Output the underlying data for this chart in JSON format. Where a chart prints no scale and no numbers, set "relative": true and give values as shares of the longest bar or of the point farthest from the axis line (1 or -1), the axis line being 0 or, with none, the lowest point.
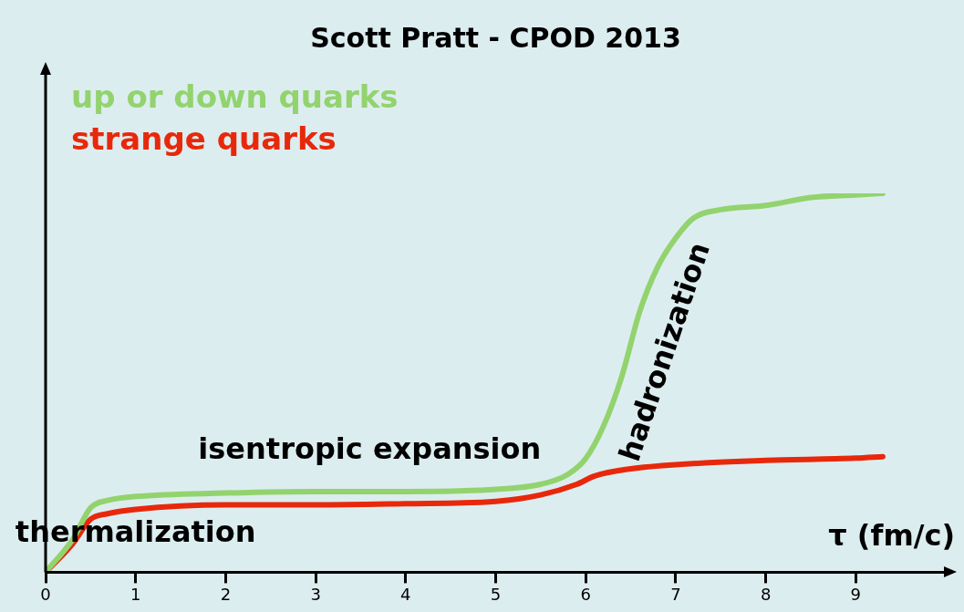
{
  "chart_data": {
    "type": "line",
    "title": "Scott Pratt - CPOD 2013",
    "xlabel": "τ (fm/c)",
    "relative": true,
    "legend": "top left",
    "marker": "none",
    "line_style": "solid",
    "grid": false,
    "xlim": [
      0,
      10
    ],
    "xticks": [
      0,
      1,
      2,
      3,
      4,
      5,
      6,
      7,
      8,
      9
    ],
    "series": [
      {
        "name": "up or down quarks",
        "color": "#92d36e",
        "x": [
          0,
          0.3,
          0.5,
          0.7,
          1,
          2,
          3,
          4,
          5,
          5.5,
          5.8,
          6,
          6.2,
          6.4,
          6.6,
          6.8,
          7,
          7.2,
          7.5,
          8,
          8.5,
          9,
          9.3
        ],
        "values": [
          0,
          0.086,
          0.17,
          0.19,
          0.2,
          0.209,
          0.213,
          0.213,
          0.219,
          0.232,
          0.258,
          0.3,
          0.387,
          0.516,
          0.688,
          0.806,
          0.882,
          0.935,
          0.957,
          0.968,
          0.989,
          0.996,
          1
        ]
      },
      {
        "name": "strange quarks",
        "color": "#e8280b",
        "x": [
          0,
          0.3,
          0.5,
          0.7,
          1,
          2,
          3,
          4,
          5,
          5.5,
          5.9,
          6.1,
          6.5,
          7,
          8,
          9,
          9.3
        ],
        "values": [
          0,
          0.075,
          0.14,
          0.155,
          0.166,
          0.178,
          0.178,
          0.181,
          0.187,
          0.204,
          0.232,
          0.254,
          0.273,
          0.284,
          0.295,
          0.301,
          0.305
        ]
      }
    ],
    "annotations": [
      "thermalization",
      "isentropic expansion",
      "hadronization"
    ]
  }
}
